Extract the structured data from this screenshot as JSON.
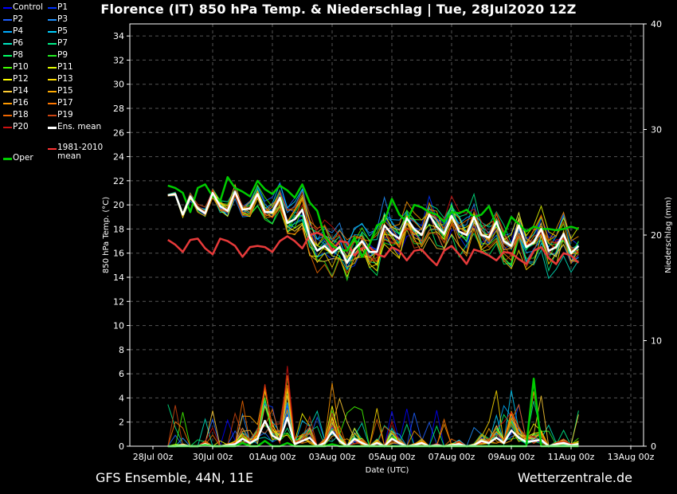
{
  "header": {
    "title": "Florence  (IT)  850 hPa Temp. & Niederschlag | Tue, 28Jul2020 12Z"
  },
  "footer": {
    "left": "GFS Ensemble, 44N, 11E",
    "right": "Wetterzentrale.de"
  },
  "legend": {
    "items": [
      {
        "label": "Control",
        "color": "#0000ff"
      },
      {
        "label": "P1",
        "color": "#0033ff"
      },
      {
        "label": "P2",
        "color": "#1f5fff"
      },
      {
        "label": "P3",
        "color": "#1e90ff"
      },
      {
        "label": "P4",
        "color": "#00aaff"
      },
      {
        "label": "P5",
        "color": "#00d0ff"
      },
      {
        "label": "P6",
        "color": "#00e5c0"
      },
      {
        "label": "P7",
        "color": "#00ee88"
      },
      {
        "label": "P8",
        "color": "#00ff66"
      },
      {
        "label": "P9",
        "color": "#22ee22"
      },
      {
        "label": "P10",
        "color": "#44ff00"
      },
      {
        "label": "P11",
        "color": "#e6ff00"
      },
      {
        "label": "P12",
        "color": "#ffff00"
      },
      {
        "label": "P13",
        "color": "#ffdd00"
      },
      {
        "label": "P14",
        "color": "#ffcc33"
      },
      {
        "label": "P15",
        "color": "#ffaa00"
      },
      {
        "label": "P16",
        "color": "#ff9900"
      },
      {
        "label": "P17",
        "color": "#ff7700"
      },
      {
        "label": "P18",
        "color": "#ee6600"
      },
      {
        "label": "P19",
        "color": "#cc4411"
      },
      {
        "label": "P20",
        "color": "#cc1111"
      },
      {
        "label": "Ens. mean",
        "color": "#ffffff"
      },
      {
        "label": "1981-2010 mean",
        "color": "#ff3333"
      },
      {
        "label": "Oper",
        "color": "#00cc00"
      }
    ]
  },
  "chart_data": {
    "type": "line",
    "title": "Florence  (IT)  850 hPa Temp. & Niederschlag | Tue, 28Jul2020 12Z",
    "xlabel": "Date (UTC)",
    "ylabel": "850 hPa Temp. (°C)",
    "y2label": "Niederschlag (mm)",
    "ylim": [
      0,
      35
    ],
    "y2lim": [
      0,
      40
    ],
    "yticks": [
      0,
      2,
      4,
      6,
      8,
      10,
      12,
      14,
      16,
      18,
      20,
      22,
      24,
      26,
      28,
      30,
      32,
      34
    ],
    "y2ticks": [
      0,
      10,
      20,
      30,
      40
    ],
    "xlim": [
      0,
      16.5
    ],
    "x_tick_positions": [
      0,
      2,
      4,
      6,
      8,
      10,
      12,
      14,
      16
    ],
    "x_tick_labels": [
      "28Jul 00z",
      "30Jul 00z",
      "01Aug 00z",
      "03Aug 00z",
      "05Aug 00z",
      "07Aug 00z",
      "09Aug 00z",
      "11Aug 00z",
      "13Aug 00z"
    ],
    "grid": true,
    "colors": {
      "oper": "#00cc00",
      "mean": "#ffffff",
      "climate": "#e83a3a",
      "grid": "#555555"
    },
    "x_step_days": 0.25,
    "x_start_day": 0.5,
    "mean_temp": [
      20.8,
      20.9,
      19.2,
      20.7,
      19.7,
      19.3,
      21.0,
      19.9,
      19.5,
      21.1,
      19.6,
      19.7,
      20.9,
      19.4,
      19.4,
      20.6,
      18.5,
      18.8,
      19.6,
      17.3,
      16.2,
      16.6,
      16.0,
      16.5,
      15.2,
      16.3,
      17.0,
      16.1,
      16.1,
      18.3,
      17.6,
      17.2,
      18.9,
      18.0,
      17.5,
      19.2,
      18.2,
      17.6,
      19.1,
      17.8,
      17.5,
      19.0,
      17.5,
      17.3,
      18.6,
      17.0,
      16.6,
      18.3,
      16.5,
      16.9,
      18.0,
      16.2,
      16.5,
      17.6,
      16.0,
      16.6
    ],
    "oper_temp": [
      21.6,
      21.4,
      21.0,
      19.4,
      21.4,
      21.7,
      20.7,
      20.3,
      22.3,
      21.4,
      21.1,
      20.7,
      22.0,
      21.3,
      20.9,
      21.6,
      21.2,
      20.6,
      21.7,
      20.2,
      19.5,
      17.4,
      16.6,
      16.3,
      16.2,
      17.3,
      15.7,
      16.7,
      18.3,
      18.6,
      20.5,
      19.2,
      18.6,
      20.0,
      19.8,
      19.4,
      19.2,
      18.6,
      19.4,
      19.3,
      19.6,
      19.0,
      19.2,
      19.9,
      18.3,
      17.5,
      19.0,
      18.4,
      17.8,
      18.2,
      18.0,
      18.0,
      17.9,
      18.0,
      18.2,
      18.0
    ],
    "climate_temp": [
      17.1,
      16.7,
      16.1,
      17.1,
      17.2,
      16.4,
      15.9,
      17.2,
      17.0,
      16.6,
      15.7,
      16.5,
      16.6,
      16.5,
      16.1,
      17.0,
      17.4,
      17.0,
      16.4,
      17.5,
      17.7,
      17.4,
      16.2,
      17.0,
      16.9,
      15.8,
      16.4,
      16.5,
      15.9,
      15.7,
      16.5,
      16.2,
      15.4,
      16.2,
      16.3,
      15.6,
      15.0,
      16.2,
      16.6,
      15.9,
      15.1,
      16.3,
      16.1,
      15.8,
      15.4,
      16.1,
      16.0,
      15.5,
      15.1,
      16.2,
      16.5,
      15.6,
      15.1,
      16.0,
      15.8,
      15.2
    ],
    "mean_precip": [
      0.0,
      0.0,
      0.1,
      0.0,
      0.0,
      0.2,
      0.0,
      0.0,
      0.1,
      0.2,
      0.7,
      0.3,
      0.7,
      2.4,
      1.0,
      0.6,
      2.7,
      0.2,
      0.5,
      0.8,
      0.0,
      0.3,
      1.4,
      0.5,
      0.0,
      0.7,
      0.3,
      0.0,
      0.3,
      0.0,
      0.7,
      0.3,
      0.0,
      0.1,
      0.3,
      0.0,
      0.1,
      0.0,
      0.1,
      0.2,
      0.0,
      0.1,
      0.5,
      0.3,
      0.8,
      0.3,
      1.5,
      0.8,
      0.4,
      0.5,
      0.6,
      0.0,
      0.2,
      0.3,
      0.1,
      0.2
    ],
    "oper_precip": [
      0.0,
      0.0,
      0.0,
      0.0,
      0.0,
      0.1,
      0.0,
      0.0,
      0.0,
      0.0,
      0.3,
      0.0,
      0.0,
      0.5,
      0.0,
      0.0,
      0.3,
      0.0,
      0.0,
      0.0,
      0.0,
      0.0,
      0.2,
      0.0,
      0.0,
      0.0,
      0.0,
      0.0,
      0.0,
      0.0,
      0.0,
      0.0,
      0.0,
      0.0,
      0.0,
      0.0,
      0.0,
      0.0,
      0.0,
      0.0,
      0.0,
      0.0,
      0.0,
      0.0,
      0.0,
      0.0,
      0.0,
      0.0,
      0.0,
      6.4,
      0.0,
      0.0,
      0.0,
      0.0,
      0.0,
      0.0
    ]
  }
}
